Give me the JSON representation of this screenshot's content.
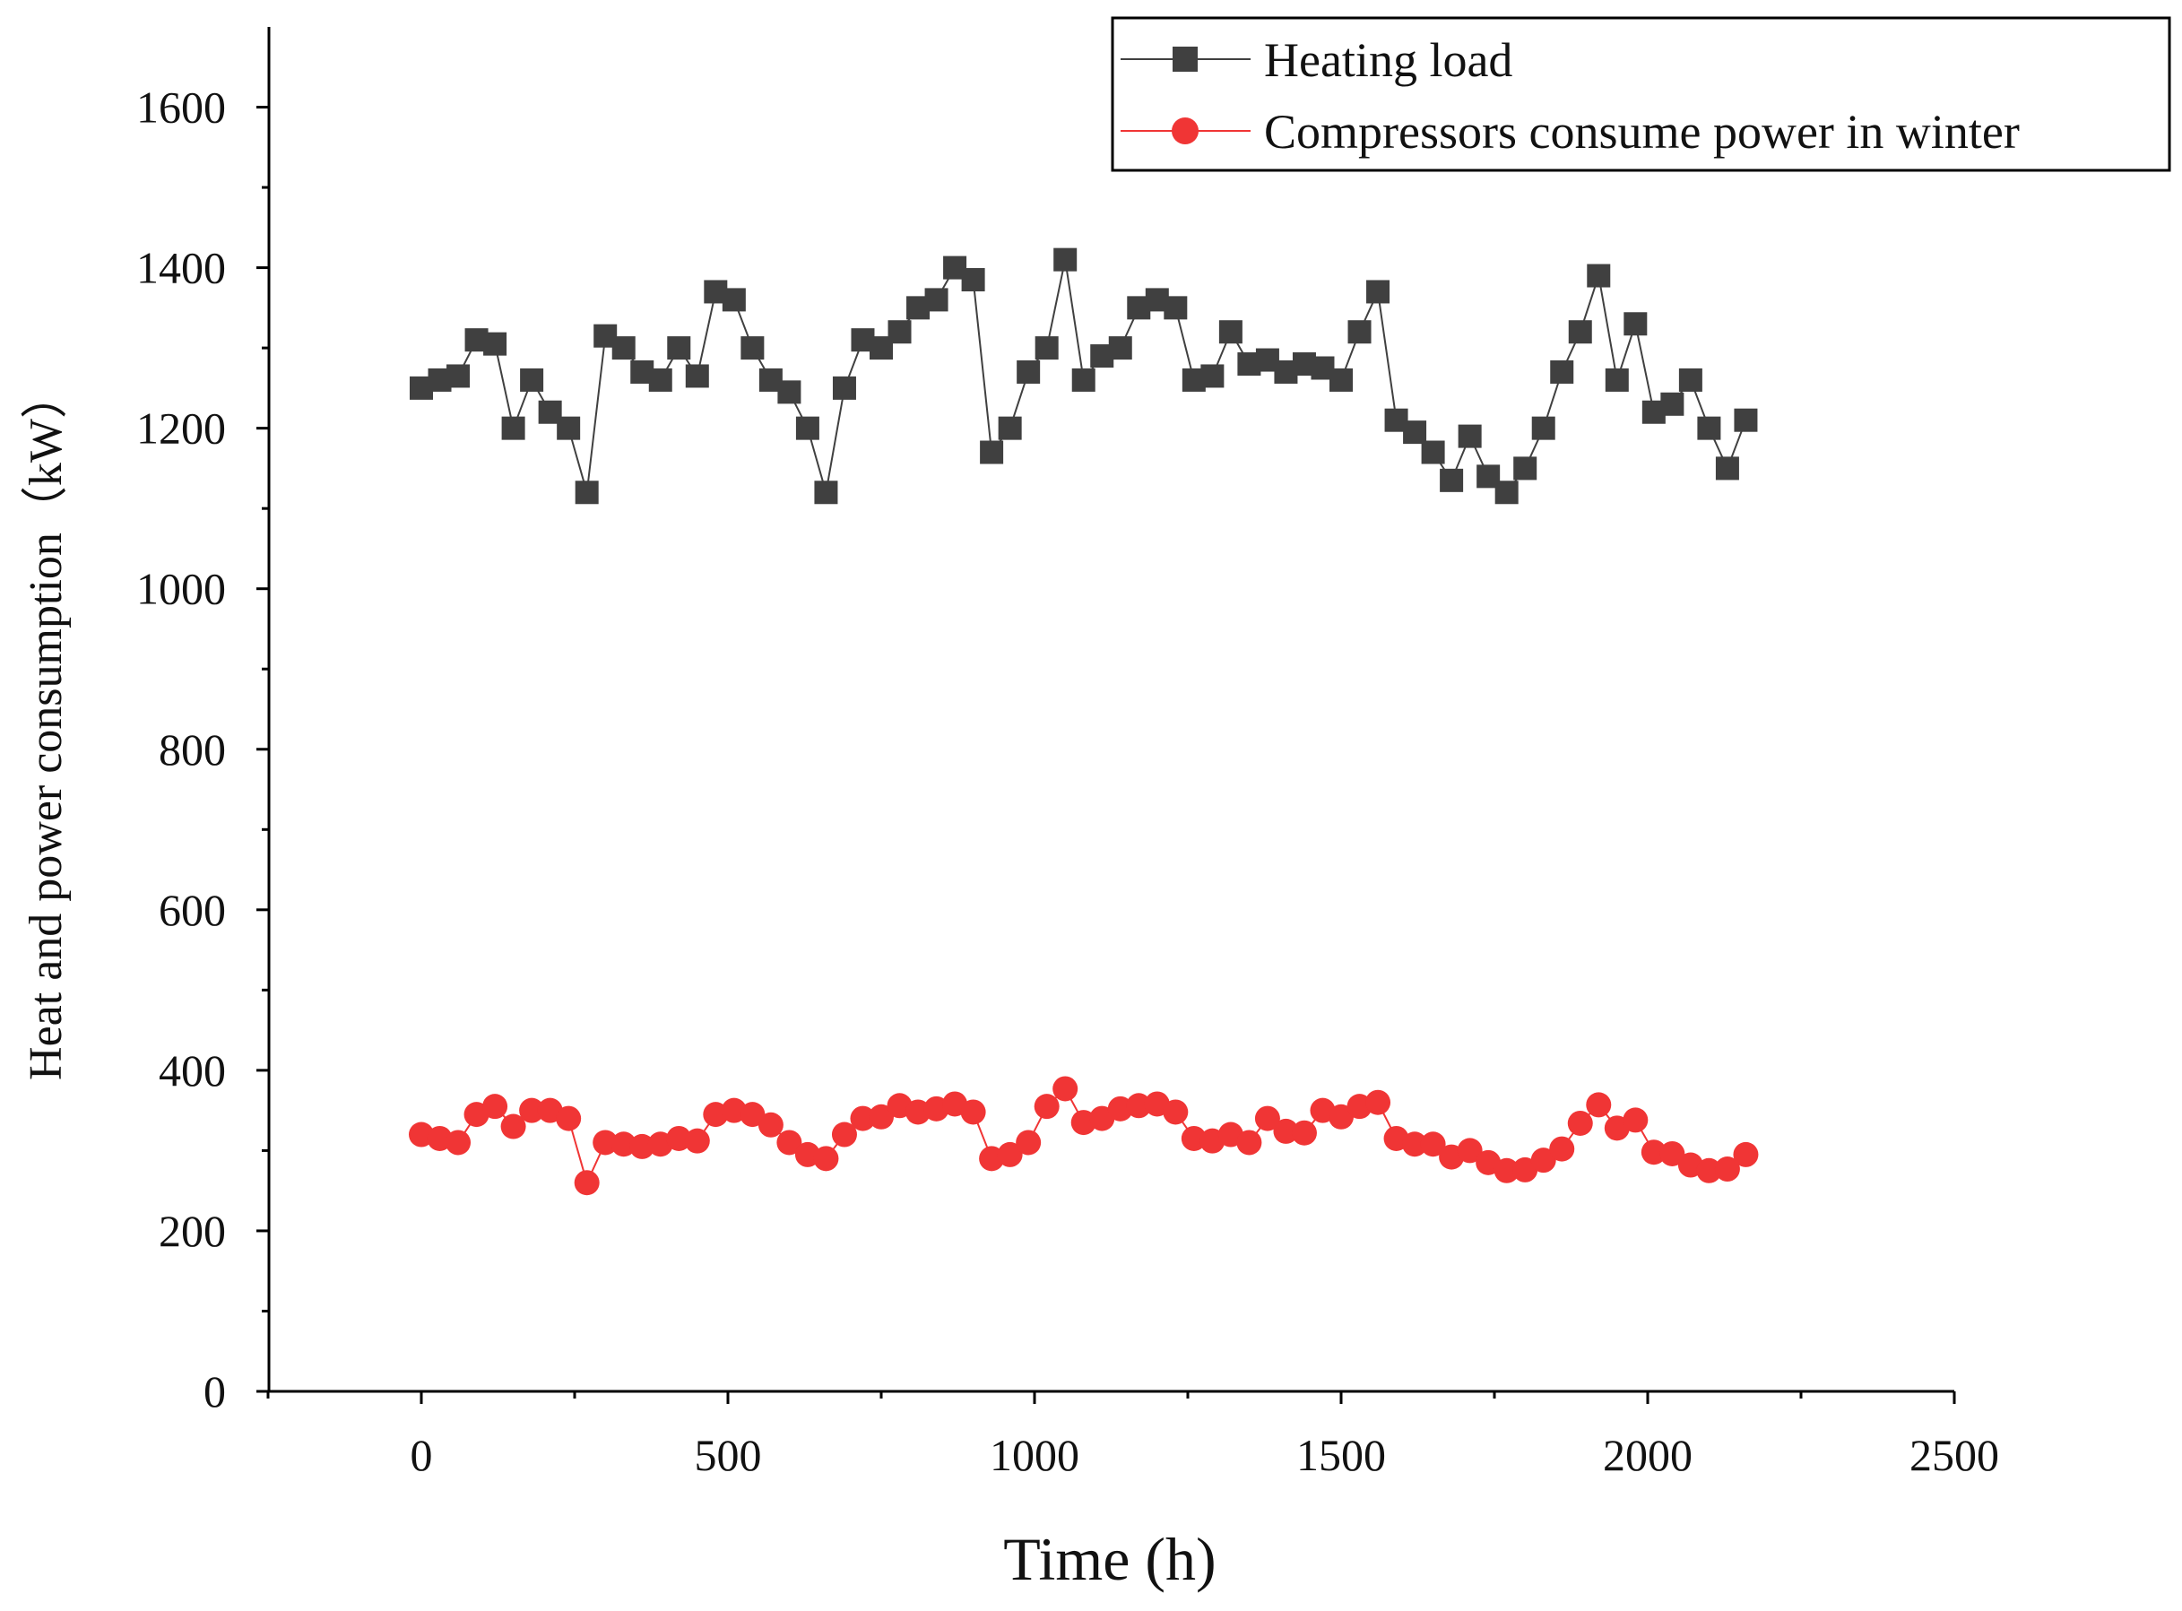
{
  "chart_data": {
    "type": "line",
    "title": "",
    "xlabel": "Time (h)",
    "ylabel": "Heat and power consumption（kW）",
    "xlim": [
      -250,
      2500
    ],
    "ylim": [
      0,
      1700
    ],
    "xticks": [
      0,
      500,
      1000,
      1500,
      2000,
      2500
    ],
    "xtick_labels": [
      "0",
      "500",
      "1000",
      "1500",
      "2000",
      "2500"
    ],
    "yticks": [
      0,
      200,
      400,
      600,
      800,
      1000,
      1200,
      1400,
      1600
    ],
    "ytick_labels": [
      "0",
      "200",
      "400",
      "600",
      "800",
      "1000",
      "1200",
      "1400",
      "1600"
    ],
    "legend_position": "top-right",
    "x": [
      0,
      30,
      60,
      90,
      120,
      150,
      180,
      210,
      240,
      270,
      300,
      330,
      360,
      390,
      420,
      450,
      480,
      510,
      540,
      570,
      600,
      630,
      660,
      690,
      720,
      750,
      780,
      810,
      840,
      870,
      900,
      930,
      960,
      990,
      1020,
      1050,
      1080,
      1110,
      1140,
      1170,
      1200,
      1230,
      1260,
      1290,
      1320,
      1350,
      1380,
      1410,
      1440,
      1470,
      1500,
      1530,
      1560,
      1590,
      1620,
      1650,
      1680,
      1710,
      1740,
      1770,
      1800,
      1830,
      1860,
      1890,
      1920,
      1950,
      1980,
      2010,
      2040,
      2070,
      2100,
      2130,
      2160
    ],
    "series": [
      {
        "name": "Heating load",
        "color": "#404040",
        "marker": "square",
        "values": [
          1250,
          1260,
          1265,
          1310,
          1305,
          1200,
          1260,
          1220,
          1200,
          1120,
          1315,
          1300,
          1270,
          1260,
          1300,
          1265,
          1370,
          1360,
          1300,
          1260,
          1245,
          1200,
          1120,
          1250,
          1310,
          1300,
          1320,
          1350,
          1360,
          1400,
          1385,
          1170,
          1200,
          1270,
          1300,
          1410,
          1260,
          1290,
          1300,
          1350,
          1360,
          1350,
          1260,
          1265,
          1320,
          1280,
          1285,
          1270,
          1280,
          1275,
          1260,
          1320,
          1370,
          1210,
          1195,
          1170,
          1135,
          1190,
          1140,
          1120,
          1150,
          1200,
          1270,
          1320,
          1390,
          1260,
          1330,
          1220,
          1230,
          1260,
          1200,
          1150,
          1210
        ]
      },
      {
        "name": "Compressors consume power in winter",
        "color": "#f03535",
        "marker": "circle",
        "values": [
          320,
          315,
          310,
          345,
          355,
          330,
          350,
          350,
          340,
          260,
          310,
          308,
          305,
          308,
          315,
          312,
          345,
          350,
          345,
          332,
          310,
          295,
          290,
          320,
          340,
          342,
          356,
          348,
          352,
          358,
          348,
          290,
          295,
          310,
          355,
          377,
          335,
          340,
          352,
          356,
          358,
          348,
          315,
          312,
          320,
          310,
          340,
          324,
          322,
          350,
          342,
          355,
          360,
          315,
          308,
          308,
          292,
          300,
          285,
          275,
          276,
          288,
          302,
          334,
          357,
          328,
          338,
          298,
          296,
          282,
          275,
          277,
          295
        ]
      }
    ]
  }
}
